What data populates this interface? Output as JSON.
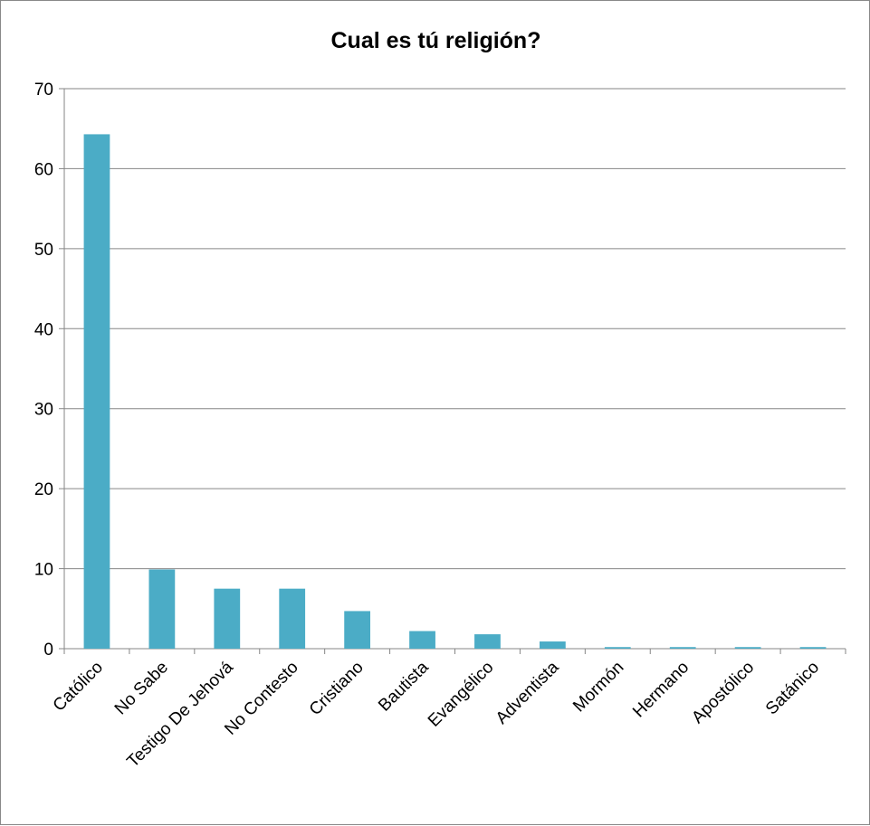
{
  "chart_data": {
    "type": "bar",
    "title": "Cual es tú religión?",
    "xlabel": "",
    "ylabel": "",
    "categories": [
      "Católico",
      "No Sabe",
      "Testigo De Jehová",
      "No Contesto",
      "Cristiano",
      "Bautista",
      "Evangélico",
      "Adventista",
      "Mormón",
      "Hermano",
      "Apostólico",
      "Satánico"
    ],
    "values": [
      64.3,
      9.9,
      7.5,
      7.5,
      4.7,
      2.2,
      1.8,
      0.9,
      0.2,
      0.2,
      0.2,
      0.2
    ],
    "ylim": [
      0,
      70
    ],
    "yticks": [
      0,
      10,
      20,
      30,
      40,
      50,
      60,
      70
    ],
    "grid": true,
    "legend": "none",
    "bar_color": "#4BACC6"
  }
}
